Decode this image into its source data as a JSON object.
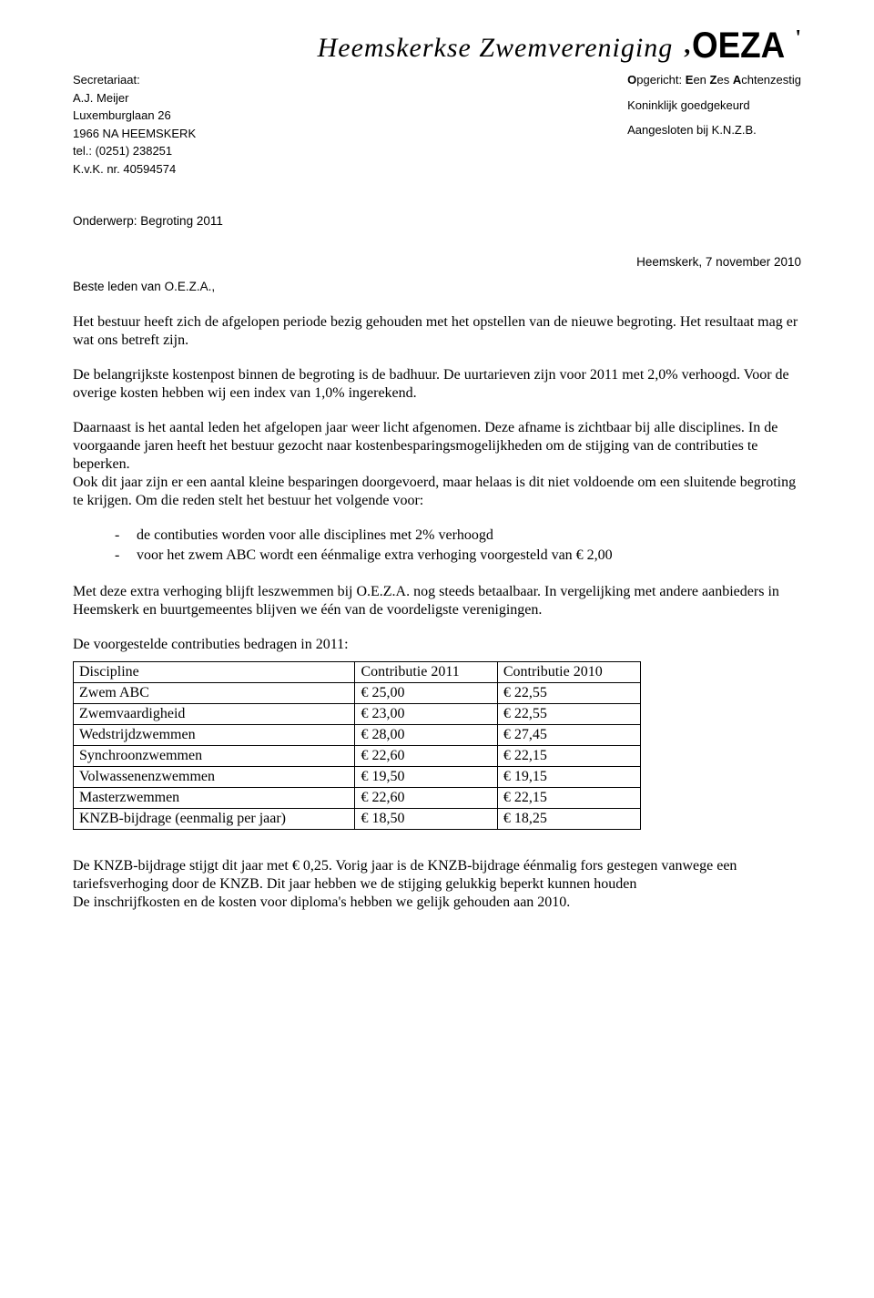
{
  "header": {
    "club_name": "Heemskerkse Zwemvereniging",
    "logo_text": "OEZA",
    "founded": "Opgericht: Een Zes Achtenzestig",
    "approved": "Koninklijk goedgekeurd",
    "affiliated": "Aangesloten bij K.N.Z.B."
  },
  "address": {
    "label": "Secretariaat:",
    "name": "A.J. Meijer",
    "street": "Luxemburglaan 26",
    "city": "1966 NA  HEEMSKERK",
    "tel": "tel.: (0251) 238251",
    "kvk": "K.v.K. nr. 40594574"
  },
  "subject": "Onderwerp: Begroting 2011",
  "date": "Heemskerk, 7 november 2010",
  "salutation": "Beste leden van O.E.Z.A.,",
  "paragraphs": {
    "p1": "Het bestuur heeft zich de afgelopen periode bezig gehouden met het opstellen van de nieuwe begroting. Het resultaat mag er wat ons betreft zijn.",
    "p2": "De belangrijkste kostenpost binnen de begroting is de badhuur. De uurtarieven zijn voor 2011 met 2,0% verhoogd. Voor de overige kosten hebben wij een index van 1,0% ingerekend.",
    "p3a": "Daarnaast is het aantal leden het afgelopen jaar weer licht afgenomen. Deze afname is zichtbaar bij alle disciplines. In de voorgaande jaren heeft het bestuur gezocht naar kostenbesparingsmogelijkheden om de stijging van de contributies te beperken.",
    "p3b": "Ook dit jaar zijn er een aantal kleine besparingen doorgevoerd, maar helaas is dit niet voldoende om een sluitende begroting te krijgen. Om die reden stelt het bestuur het volgende voor:",
    "bullet1": "de contibuties worden voor alle disciplines met 2% verhoogd",
    "bullet2": "voor het zwem ABC wordt een éénmalige extra verhoging voorgesteld van € 2,00",
    "p4": "Met deze extra verhoging blijft leszwemmen bij O.E.Z.A. nog steeds betaalbaar. In vergelijking met andere aanbieders in Heemskerk en buurtgemeentes blijven we één van de voordeligste verenigingen.",
    "p5": "De voorgestelde contributies bedragen in 2011:",
    "p6a": "De KNZB-bijdrage stijgt dit jaar met € 0,25. Vorig jaar is de KNZB-bijdrage éénmalig fors gestegen vanwege een tariefsverhoging door de KNZB. Dit jaar hebben we de stijging gelukkig beperkt kunnen houden",
    "p6b": "De inschrijfkosten en de kosten voor diploma's hebben we gelijk gehouden aan 2010."
  },
  "table": {
    "headers": [
      "Discipline",
      "Contributie 2011",
      "Contributie 2010"
    ],
    "rows": [
      [
        "Zwem ABC",
        "€ 25,00",
        "€ 22,55"
      ],
      [
        "Zwemvaardigheid",
        "€ 23,00",
        "€ 22,55"
      ],
      [
        "Wedstrijdzwemmen",
        "€ 28,00",
        "€ 27,45"
      ],
      [
        "Synchroonzwemmen",
        "€ 22,60",
        "€ 22,15"
      ],
      [
        "Volwassenenzwemmen",
        "€ 19,50",
        "€ 19,15"
      ],
      [
        "Masterzwemmen",
        "€ 22,60",
        "€ 22,15"
      ],
      [
        "KNZB-bijdrage (eenmalig per jaar)",
        "€ 18,50",
        "€ 18,25"
      ]
    ]
  }
}
